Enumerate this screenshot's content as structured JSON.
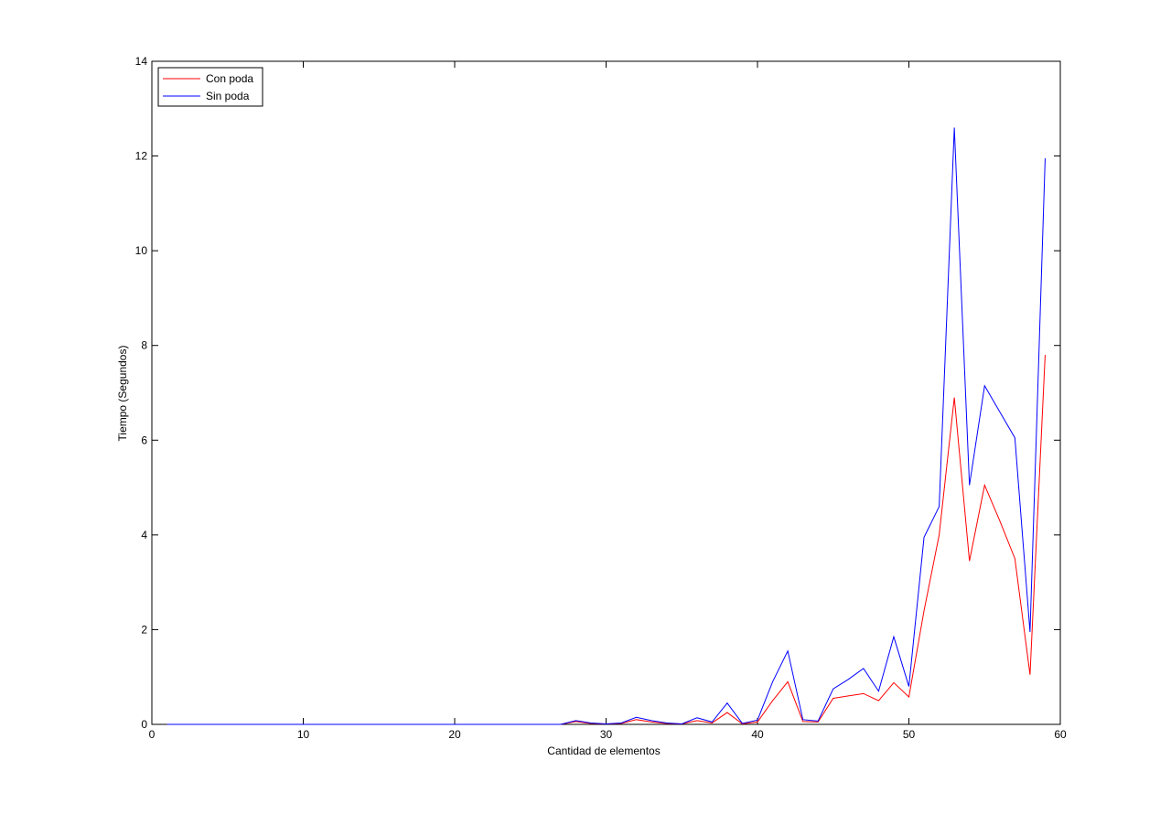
{
  "chart_data": {
    "type": "line",
    "title": "",
    "xlabel": "Cantidad de elementos",
    "ylabel": "Tiempo (Segundos)",
    "xlim": [
      0,
      60
    ],
    "ylim": [
      0,
      14
    ],
    "xticks": [
      0,
      10,
      20,
      30,
      40,
      50,
      60
    ],
    "yticks": [
      0,
      2,
      4,
      6,
      8,
      10,
      12,
      14
    ],
    "grid": false,
    "legend_position": "top-left",
    "x": [
      1,
      2,
      3,
      4,
      5,
      6,
      7,
      8,
      9,
      10,
      11,
      12,
      13,
      14,
      15,
      16,
      17,
      18,
      19,
      20,
      21,
      22,
      23,
      24,
      25,
      26,
      27,
      28,
      29,
      30,
      31,
      32,
      33,
      34,
      35,
      36,
      37,
      38,
      39,
      40,
      41,
      42,
      43,
      44,
      45,
      46,
      47,
      48,
      49,
      50,
      51,
      52,
      53,
      54,
      55,
      56,
      57,
      58,
      59
    ],
    "series": [
      {
        "name": "Con poda",
        "color": "#ff0000",
        "values": [
          0,
          0,
          0,
          0,
          0,
          0,
          0,
          0,
          0,
          0,
          0,
          0,
          0,
          0,
          0,
          0,
          0,
          0,
          0,
          0,
          0,
          0,
          0,
          0,
          0,
          0,
          0,
          0.06,
          0.02,
          0.01,
          0.02,
          0.1,
          0.05,
          0.02,
          0.01,
          0.08,
          0.03,
          0.25,
          0.01,
          0.05,
          0.5,
          0.9,
          0.06,
          0.05,
          0.55,
          0.6,
          0.65,
          0.5,
          0.88,
          0.58,
          2.4,
          4.0,
          6.9,
          3.45,
          5.05,
          4.3,
          3.5,
          1.05,
          7.8
        ]
      },
      {
        "name": "Sin poda",
        "color": "#0000ff",
        "values": [
          0,
          0,
          0,
          0,
          0,
          0,
          0,
          0,
          0,
          0,
          0,
          0,
          0,
          0,
          0,
          0,
          0,
          0,
          0,
          0,
          0,
          0,
          0,
          0,
          0,
          0,
          0,
          0.08,
          0.03,
          0.01,
          0.03,
          0.15,
          0.08,
          0.03,
          0.01,
          0.14,
          0.05,
          0.45,
          0.02,
          0.09,
          0.9,
          1.55,
          0.1,
          0.07,
          0.75,
          0.95,
          1.18,
          0.7,
          1.85,
          0.8,
          3.95,
          4.6,
          12.6,
          5.05,
          7.15,
          6.6,
          6.05,
          1.95,
          11.95
        ]
      }
    ]
  }
}
